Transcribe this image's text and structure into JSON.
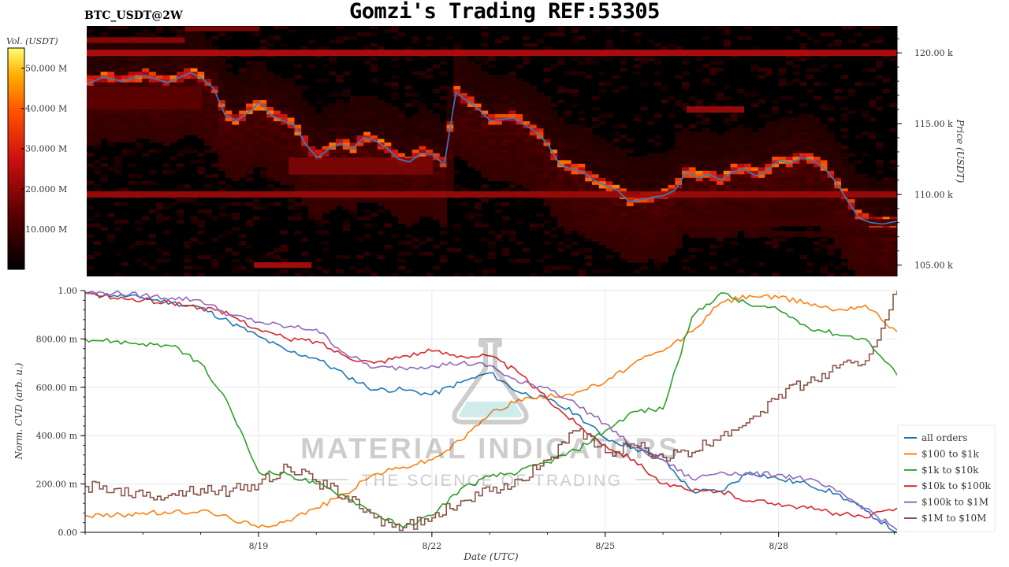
{
  "header": {
    "title": "Gomzi's Trading REF:53305",
    "ticker": "BTC_USDT@2W"
  },
  "watermark": {
    "line1": "MATERIAL INDICATORS",
    "line2": "THE SCIENCE OF TRADING"
  },
  "colors": {
    "all orders": "#1f77b4",
    "$100 to $1k": "#ff7f0e",
    "$1k to $10k": "#2ca02c",
    "$10k to $100k": "#d62728",
    "$100k to $1M": "#9467bd",
    "$1M to $10M": "#8c564b",
    "price_line": "#2b83c6"
  },
  "chart_data": [
    {
      "type": "heatmap",
      "colorbar": {
        "label": "Vol. (USDT)",
        "range": [
          0,
          55
        ],
        "ticks": [
          {
            "v": 10,
            "label": "10.000 M"
          },
          {
            "v": 20,
            "label": "20.000 M"
          },
          {
            "v": 30,
            "label": "30.000 M"
          },
          {
            "v": 40,
            "label": "40.000 M"
          },
          {
            "v": 50,
            "label": "50.000 M"
          }
        ]
      },
      "ylabel": "Price (USDT)",
      "ylim": [
        104.2,
        121.9
      ],
      "yticks": [
        {
          "v": 105,
          "label": "105.00 k"
        },
        {
          "v": 110,
          "label": "110.00 k"
        },
        {
          "v": 115,
          "label": "115.00 k"
        },
        {
          "v": 120,
          "label": "120.00 k"
        }
      ],
      "xlim": [
        0,
        14.05
      ],
      "liquidity_bands": [
        {
          "x": [
            0,
            14.05
          ],
          "y": 120.0,
          "h": 0.45,
          "v": 25
        },
        {
          "x": [
            0,
            14.05
          ],
          "y": 110.0,
          "h": 0.45,
          "v": 22
        },
        {
          "x": [
            0,
            1.7
          ],
          "y": 120.9,
          "h": 0.4,
          "v": 20
        },
        {
          "x": [
            1.7,
            3.0
          ],
          "y": 121.7,
          "h": 0.35,
          "v": 18
        },
        {
          "x": [
            2.9,
            3.9
          ],
          "y": 105.0,
          "h": 0.4,
          "v": 24
        },
        {
          "x": [
            10.4,
            11.4
          ],
          "y": 116.0,
          "h": 0.45,
          "v": 22
        },
        {
          "x": [
            3.5,
            6.0
          ],
          "y": 112.0,
          "h": 1.2,
          "v": 18
        },
        {
          "x": [
            0,
            2.0
          ],
          "y": 116.8,
          "h": 1.6,
          "v": 14
        },
        {
          "x": [
            8.5,
            14.05
          ],
          "y": 108.0,
          "h": 0.5,
          "v": 10
        },
        {
          "x": [
            11.5,
            14.05
          ],
          "y": 107.2,
          "h": 0.4,
          "v": 8
        }
      ],
      "price_line": {
        "x": [
          0,
          0.3,
          0.6,
          1.0,
          1.4,
          1.8,
          2.0,
          2.2,
          2.4,
          2.6,
          2.8,
          3.0,
          3.2,
          3.4,
          3.6,
          3.8,
          4.0,
          4.2,
          4.4,
          4.6,
          4.8,
          5.0,
          5.2,
          5.4,
          5.6,
          5.8,
          6.0,
          6.2,
          6.4,
          6.6,
          6.8,
          7.0,
          7.2,
          7.4,
          7.6,
          7.8,
          8.0,
          8.2,
          8.4,
          8.6,
          8.8,
          9.0,
          9.2,
          9.4,
          9.6,
          9.8,
          10.0,
          10.2,
          10.4,
          10.6,
          10.8,
          11.0,
          11.2,
          11.4,
          11.6,
          11.8,
          12.0,
          12.2,
          12.4,
          12.6,
          12.8,
          13.0,
          13.2,
          13.4,
          13.6,
          13.8,
          14.05
        ],
        "y": [
          117.8,
          118.3,
          118.0,
          118.4,
          117.9,
          118.6,
          118.2,
          117.5,
          115.6,
          115.2,
          115.8,
          116.5,
          115.6,
          115.2,
          114.9,
          113.5,
          112.6,
          113.2,
          113.6,
          113.2,
          114.0,
          113.8,
          113.3,
          112.5,
          112.3,
          112.9,
          112.8,
          112.1,
          117.2,
          116.6,
          116.0,
          115.2,
          115.3,
          115.4,
          114.9,
          114.4,
          113.5,
          112.1,
          111.8,
          111.6,
          111.0,
          110.6,
          110.3,
          109.5,
          109.6,
          109.8,
          109.9,
          110.3,
          111.6,
          111.2,
          111.4,
          111.0,
          111.6,
          111.8,
          111.3,
          111.7,
          112.4,
          112.2,
          112.6,
          112.4,
          111.8,
          110.8,
          109.5,
          108.3,
          108.0,
          107.9,
          108.1
        ]
      }
    },
    {
      "type": "line",
      "xlabel": "Date (UTC)",
      "ylabel": "Norm. CVD (arb. u.)",
      "xlim": [
        0,
        14.05
      ],
      "ylim": [
        0,
        1
      ],
      "xticks": [
        {
          "v": 3.0,
          "label": "8/19"
        },
        {
          "v": 6.0,
          "label": "8/22"
        },
        {
          "v": 9.0,
          "label": "8/25"
        },
        {
          "v": 12.0,
          "label": "8/28"
        }
      ],
      "yticks": [
        {
          "v": 0,
          "label": "0.00"
        },
        {
          "v": 0.2,
          "label": "200.00 m"
        },
        {
          "v": 0.4,
          "label": "400.00 m"
        },
        {
          "v": 0.6,
          "label": "600.00 m"
        },
        {
          "v": 0.8,
          "label": "800.00 m"
        },
        {
          "v": 1.0,
          "label": "1.00"
        }
      ],
      "x": [
        0,
        0.5,
        1.0,
        1.5,
        2.0,
        2.5,
        3.0,
        3.5,
        4.0,
        4.5,
        5.0,
        5.5,
        6.0,
        6.5,
        7.0,
        7.5,
        8.0,
        8.5,
        9.0,
        9.5,
        10.0,
        10.5,
        11.0,
        11.5,
        12.0,
        12.5,
        13.0,
        13.5,
        14.05
      ],
      "series": [
        {
          "name": "all orders",
          "values": [
            0.99,
            0.98,
            0.97,
            0.95,
            0.93,
            0.87,
            0.81,
            0.75,
            0.72,
            0.65,
            0.59,
            0.59,
            0.57,
            0.62,
            0.66,
            0.58,
            0.55,
            0.49,
            0.39,
            0.35,
            0.3,
            0.17,
            0.17,
            0.25,
            0.22,
            0.2,
            0.16,
            0.09,
            0.0
          ]
        },
        {
          "name": "$100 to $1k",
          "values": [
            0.07,
            0.07,
            0.08,
            0.08,
            0.09,
            0.06,
            0.02,
            0.05,
            0.1,
            0.16,
            0.24,
            0.27,
            0.3,
            0.38,
            0.49,
            0.55,
            0.56,
            0.58,
            0.62,
            0.7,
            0.75,
            0.83,
            0.95,
            0.98,
            0.97,
            0.95,
            0.92,
            0.94,
            0.83
          ]
        },
        {
          "name": "$1k to $10k",
          "values": [
            0.8,
            0.79,
            0.78,
            0.77,
            0.7,
            0.52,
            0.25,
            0.24,
            0.2,
            0.15,
            0.08,
            0.02,
            0.07,
            0.18,
            0.23,
            0.25,
            0.29,
            0.34,
            0.42,
            0.5,
            0.51,
            0.89,
            0.99,
            0.94,
            0.92,
            0.85,
            0.82,
            0.8,
            0.65
          ]
        },
        {
          "name": "$10k to $100k",
          "values": [
            0.99,
            0.97,
            0.96,
            0.95,
            0.93,
            0.9,
            0.84,
            0.8,
            0.79,
            0.73,
            0.7,
            0.73,
            0.75,
            0.73,
            0.73,
            0.66,
            0.55,
            0.45,
            0.36,
            0.3,
            0.2,
            0.17,
            0.17,
            0.13,
            0.12,
            0.1,
            0.08,
            0.06,
            0.1
          ]
        },
        {
          "name": "$100k to $1M",
          "values": [
            0.99,
            0.99,
            0.98,
            0.97,
            0.96,
            0.9,
            0.87,
            0.85,
            0.84,
            0.74,
            0.68,
            0.68,
            0.69,
            0.7,
            0.69,
            0.62,
            0.6,
            0.53,
            0.45,
            0.35,
            0.3,
            0.22,
            0.25,
            0.24,
            0.24,
            0.22,
            0.17,
            0.1,
            0.01
          ]
        },
        {
          "name": "$1M to $10M",
          "values": [
            0.19,
            0.18,
            0.15,
            0.16,
            0.18,
            0.17,
            0.2,
            0.27,
            0.21,
            0.15,
            0.06,
            0.02,
            0.06,
            0.13,
            0.17,
            0.22,
            0.3,
            0.42,
            0.33,
            0.36,
            0.31,
            0.33,
            0.4,
            0.47,
            0.57,
            0.62,
            0.68,
            0.71,
            1.0
          ]
        }
      ],
      "legend": "right"
    }
  ]
}
